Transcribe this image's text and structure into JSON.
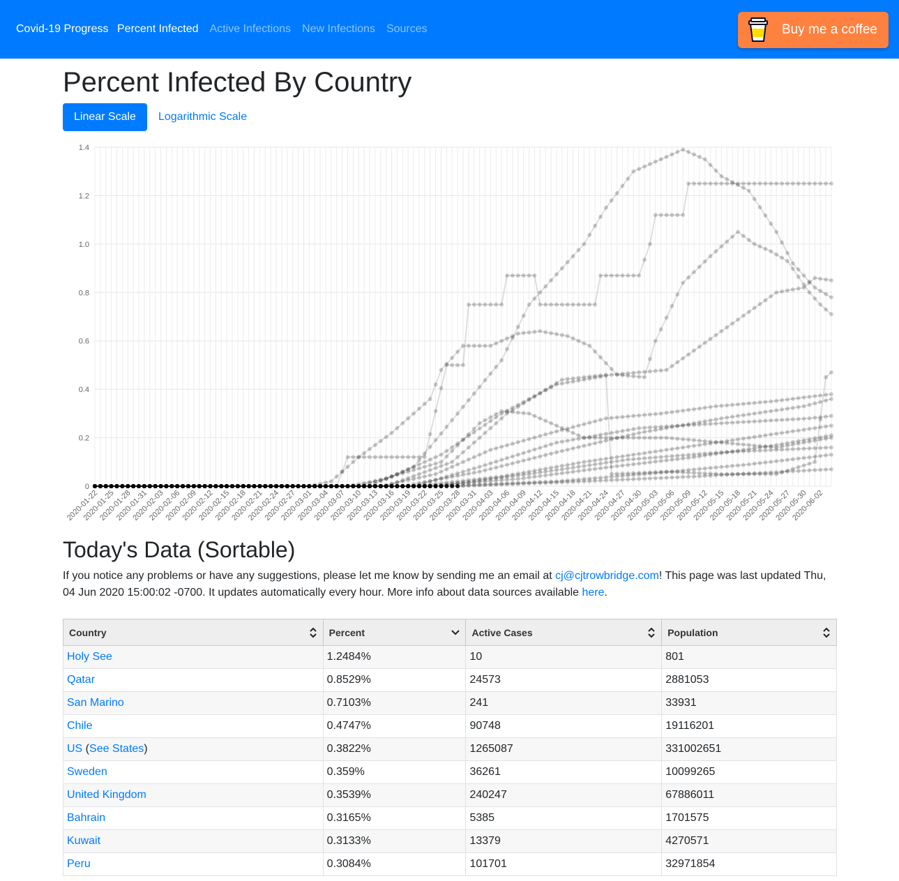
{
  "nav": {
    "brand": "Covid-19 Progress",
    "links": [
      {
        "label": "Percent Infected",
        "active": true
      },
      {
        "label": "Active Infections",
        "active": false
      },
      {
        "label": "New Infections",
        "active": false
      },
      {
        "label": "Sources",
        "active": false
      }
    ],
    "coffee_label": "Buy me a coffee"
  },
  "page_title": "Percent Infected By Country",
  "scale_buttons": {
    "linear": "Linear Scale",
    "log": "Logarithmic Scale"
  },
  "chart_data": {
    "type": "line",
    "ylim": [
      0,
      1.4
    ],
    "yticks": [
      "0",
      "0.2",
      "0.4",
      "0.6",
      "0.8",
      "1.0",
      "1.2",
      "1.4"
    ],
    "x_start": "2020-01-22",
    "x_end": "2020-06-04",
    "x_tick_labels": [
      "2020-01-22",
      "2020-01-25",
      "2020-01-28",
      "2020-01-31",
      "2020-02-03",
      "2020-02-06",
      "2020-02-09",
      "2020-02-12",
      "2020-02-15",
      "2020-02-18",
      "2020-02-21",
      "2020-02-24",
      "2020-02-27",
      "2020-03-01",
      "2020-03-04",
      "2020-03-07",
      "2020-03-10",
      "2020-03-13",
      "2020-03-16",
      "2020-03-19",
      "2020-03-22",
      "2020-03-25",
      "2020-03-28",
      "2020-03-31",
      "2020-04-03",
      "2020-04-06",
      "2020-04-09",
      "2020-04-12",
      "2020-04-15",
      "2020-04-18",
      "2020-04-21",
      "2020-04-24",
      "2020-04-27",
      "2020-04-30",
      "2020-05-03",
      "2020-05-06",
      "2020-05-09",
      "2020-05-12",
      "2020-05-15",
      "2020-05-18",
      "2020-05-21",
      "2020-05-24",
      "2020-05-27",
      "2020-05-30",
      "2020-06-02"
    ],
    "series_style": "semi-transparent gray lines with point markers, one per country",
    "series": [
      {
        "values": [
          [
            "2020-01-22",
            0
          ],
          [
            "2020-03-06",
            0
          ],
          [
            "2020-03-07",
            0.06
          ],
          [
            "2020-03-08",
            0.12
          ],
          [
            "2020-03-22",
            0.12
          ],
          [
            "2020-03-26",
            0.5
          ],
          [
            "2020-03-29",
            0.5
          ],
          [
            "2020-03-30",
            0.75
          ],
          [
            "2020-04-05",
            0.75
          ],
          [
            "2020-04-06",
            0.87
          ],
          [
            "2020-04-11",
            0.87
          ],
          [
            "2020-04-12",
            0.75
          ],
          [
            "2020-04-22",
            0.75
          ],
          [
            "2020-04-23",
            0.87
          ],
          [
            "2020-04-30",
            0.87
          ],
          [
            "2020-05-02",
            1.0
          ],
          [
            "2020-05-03",
            1.12
          ],
          [
            "2020-05-08",
            1.12
          ],
          [
            "2020-05-09",
            1.25
          ],
          [
            "2020-06-04",
            1.25
          ]
        ]
      },
      {
        "values": [
          [
            "2020-01-22",
            0
          ],
          [
            "2020-03-08",
            0
          ],
          [
            "2020-03-15",
            0.03
          ],
          [
            "2020-03-25",
            0.13
          ],
          [
            "2020-04-05",
            0.3
          ],
          [
            "2020-04-15",
            0.42
          ],
          [
            "2020-04-25",
            0.46
          ],
          [
            "2020-05-05",
            0.48
          ],
          [
            "2020-05-15",
            0.64
          ],
          [
            "2020-05-25",
            0.8
          ],
          [
            "2020-05-30",
            0.82
          ],
          [
            "2020-06-01",
            0.86
          ],
          [
            "2020-06-04",
            0.85
          ]
        ]
      },
      {
        "values": [
          [
            "2020-01-22",
            0
          ],
          [
            "2020-03-01",
            0
          ],
          [
            "2020-03-05",
            0.02
          ],
          [
            "2020-03-10",
            0.12
          ],
          [
            "2020-03-16",
            0.22
          ],
          [
            "2020-03-20",
            0.3
          ],
          [
            "2020-03-23",
            0.36
          ],
          [
            "2020-03-25",
            0.48
          ],
          [
            "2020-03-29",
            0.58
          ],
          [
            "2020-04-03",
            0.58
          ],
          [
            "2020-04-08",
            0.63
          ],
          [
            "2020-04-12",
            0.64
          ],
          [
            "2020-04-17",
            0.62
          ],
          [
            "2020-04-21",
            0.58
          ],
          [
            "2020-04-26",
            0.46
          ],
          [
            "2020-05-01",
            0.45
          ],
          [
            "2020-05-03",
            0.6
          ],
          [
            "2020-05-08",
            0.84
          ],
          [
            "2020-05-13",
            0.95
          ],
          [
            "2020-05-18",
            1.05
          ],
          [
            "2020-05-21",
            1.0
          ],
          [
            "2020-05-24",
            0.97
          ],
          [
            "2020-05-27",
            0.93
          ],
          [
            "2020-05-31",
            0.8
          ],
          [
            "2020-06-02",
            0.75
          ],
          [
            "2020-06-04",
            0.71
          ]
        ]
      },
      {
        "values": [
          [
            "2020-01-22",
            0
          ],
          [
            "2020-03-12",
            0
          ],
          [
            "2020-03-20",
            0.08
          ],
          [
            "2020-03-28",
            0.3
          ],
          [
            "2020-04-05",
            0.52
          ],
          [
            "2020-04-10",
            0.75
          ],
          [
            "2020-04-16",
            0.9
          ],
          [
            "2020-04-20",
            1.0
          ],
          [
            "2020-04-24",
            1.15
          ],
          [
            "2020-04-29",
            1.3
          ],
          [
            "2020-05-03",
            1.34
          ],
          [
            "2020-05-08",
            1.39
          ],
          [
            "2020-05-12",
            1.35
          ],
          [
            "2020-05-15",
            1.28
          ],
          [
            "2020-05-20",
            1.22
          ],
          [
            "2020-05-25",
            1.05
          ],
          [
            "2020-05-28",
            0.92
          ],
          [
            "2020-06-01",
            0.82
          ],
          [
            "2020-06-04",
            0.78
          ]
        ]
      },
      {
        "values": [
          [
            "2020-01-22",
            0
          ],
          [
            "2020-03-14",
            0
          ],
          [
            "2020-03-24",
            0.05
          ],
          [
            "2020-04-03",
            0.15
          ],
          [
            "2020-04-14",
            0.22
          ],
          [
            "2020-04-24",
            0.28
          ],
          [
            "2020-05-04",
            0.3
          ],
          [
            "2020-05-14",
            0.33
          ],
          [
            "2020-05-24",
            0.35
          ],
          [
            "2020-06-04",
            0.38
          ]
        ]
      },
      {
        "values": [
          [
            "2020-01-22",
            0
          ],
          [
            "2020-03-10",
            0
          ],
          [
            "2020-03-25",
            0.1
          ],
          [
            "2020-04-01",
            0.26
          ],
          [
            "2020-04-05",
            0.31
          ],
          [
            "2020-04-10",
            0.3
          ],
          [
            "2020-04-15",
            0.25
          ],
          [
            "2020-04-20",
            0.2
          ],
          [
            "2020-04-25",
            0.2
          ],
          [
            "2020-05-05",
            0.2
          ],
          [
            "2020-05-15",
            0.18
          ],
          [
            "2020-05-25",
            0.16
          ],
          [
            "2020-06-04",
            0.2
          ]
        ]
      },
      {
        "values": [
          [
            "2020-01-22",
            0
          ],
          [
            "2020-03-15",
            0
          ],
          [
            "2020-03-27",
            0.1
          ],
          [
            "2020-04-06",
            0.3
          ],
          [
            "2020-04-16",
            0.44
          ],
          [
            "2020-04-24",
            0.46
          ],
          [
            "2020-04-25",
            0.05
          ],
          [
            "2020-05-05",
            0.06
          ],
          [
            "2020-05-15",
            0.05
          ],
          [
            "2020-05-25",
            0.05
          ],
          [
            "2020-06-01",
            0.1
          ],
          [
            "2020-06-03",
            0.45
          ],
          [
            "2020-06-04",
            0.47
          ]
        ]
      },
      {
        "values": [
          [
            "2020-01-22",
            0
          ],
          [
            "2020-03-18",
            0
          ],
          [
            "2020-04-01",
            0.06
          ],
          [
            "2020-04-15",
            0.14
          ],
          [
            "2020-04-30",
            0.22
          ],
          [
            "2020-05-15",
            0.28
          ],
          [
            "2020-05-30",
            0.33
          ],
          [
            "2020-06-04",
            0.36
          ]
        ]
      },
      {
        "values": [
          [
            "2020-01-22",
            0
          ],
          [
            "2020-03-20",
            0
          ],
          [
            "2020-04-05",
            0.04
          ],
          [
            "2020-04-20",
            0.1
          ],
          [
            "2020-05-05",
            0.15
          ],
          [
            "2020-05-20",
            0.2
          ],
          [
            "2020-06-04",
            0.25
          ]
        ]
      },
      {
        "values": [
          [
            "2020-01-22",
            0
          ],
          [
            "2020-03-22",
            0
          ],
          [
            "2020-04-08",
            0.03
          ],
          [
            "2020-04-25",
            0.08
          ],
          [
            "2020-05-10",
            0.12
          ],
          [
            "2020-05-25",
            0.17
          ],
          [
            "2020-06-04",
            0.21
          ]
        ]
      },
      {
        "values": [
          [
            "2020-01-22",
            0
          ],
          [
            "2020-03-25",
            0
          ],
          [
            "2020-04-15",
            0.02
          ],
          [
            "2020-05-01",
            0.05
          ],
          [
            "2020-05-20",
            0.09
          ],
          [
            "2020-06-04",
            0.13
          ]
        ]
      },
      {
        "values": [
          [
            "2020-01-22",
            0
          ],
          [
            "2020-03-28",
            0
          ],
          [
            "2020-04-20",
            0.02
          ],
          [
            "2020-05-10",
            0.04
          ],
          [
            "2020-06-04",
            0.07
          ]
        ]
      },
      {
        "values": [
          [
            "2020-01-22",
            0
          ],
          [
            "2020-03-20",
            0
          ],
          [
            "2020-04-01",
            0.08
          ],
          [
            "2020-04-15",
            0.18
          ],
          [
            "2020-04-30",
            0.24
          ],
          [
            "2020-05-15",
            0.26
          ],
          [
            "2020-05-31",
            0.28
          ],
          [
            "2020-06-04",
            0.29
          ]
        ]
      },
      {
        "values": [
          [
            "2020-01-22",
            0
          ],
          [
            "2020-03-24",
            0
          ],
          [
            "2020-04-10",
            0.05
          ],
          [
            "2020-04-28",
            0.11
          ],
          [
            "2020-05-15",
            0.14
          ],
          [
            "2020-06-04",
            0.16
          ]
        ]
      }
    ]
  },
  "section_title": "Today's Data (Sortable)",
  "info": {
    "pre": "If you notice any problems or have any suggestions, please let me know by sending me an email at ",
    "email": "cj@cjtrowbridge.com",
    "mid": "! This page was last updated Thu, 04 Jun 2020 15:00:02 -0700. It updates automatically every hour. More info about data sources available ",
    "here": "here",
    "post": "."
  },
  "table": {
    "headers": [
      "Country",
      "Percent",
      "Active Cases",
      "Population"
    ],
    "sorted_column": 1,
    "rows": [
      {
        "country": "Holy See",
        "percent": "1.2484%",
        "active": "10",
        "population": "801"
      },
      {
        "country": "Qatar",
        "percent": "0.8529%",
        "active": "24573",
        "population": "2881053"
      },
      {
        "country": "San Marino",
        "percent": "0.7103%",
        "active": "241",
        "population": "33931"
      },
      {
        "country": "Chile",
        "percent": "0.4747%",
        "active": "90748",
        "population": "19116201"
      },
      {
        "country": "US",
        "extra_link": "See States",
        "percent": "0.3822%",
        "active": "1265087",
        "population": "331002651"
      },
      {
        "country": "Sweden",
        "percent": "0.359%",
        "active": "36261",
        "population": "10099265"
      },
      {
        "country": "United Kingdom",
        "percent": "0.3539%",
        "active": "240247",
        "population": "67886011"
      },
      {
        "country": "Bahrain",
        "percent": "0.3165%",
        "active": "5385",
        "population": "1701575"
      },
      {
        "country": "Kuwait",
        "percent": "0.3133%",
        "active": "13379",
        "population": "4270571"
      },
      {
        "country": "Peru",
        "percent": "0.3084%",
        "active": "101701",
        "population": "32971854"
      }
    ]
  }
}
